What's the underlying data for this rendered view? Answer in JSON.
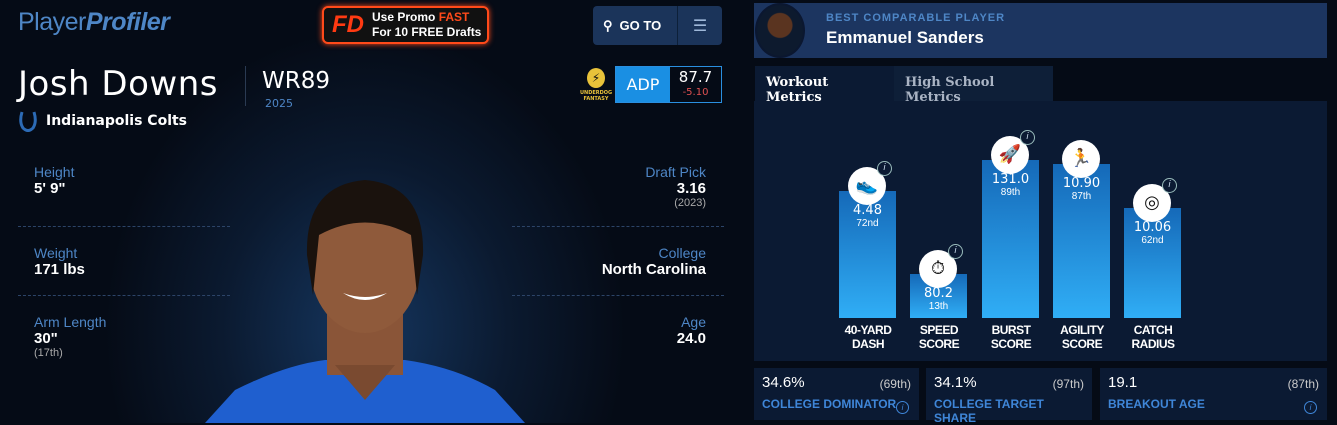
{
  "header": {
    "logo_a": "Player",
    "logo_b": "Profiler",
    "promo_brand": "FD",
    "promo_line1": "Use Promo ",
    "promo_code": "FAST",
    "promo_line2": "For 10 FREE Drafts",
    "goto_label": "GO TO"
  },
  "player": {
    "name": "Josh Downs",
    "position_rank": "WR89",
    "season": "2025",
    "team": "Indianapolis Colts",
    "adp_source": "UNDERDOG FANTASY",
    "adp_label": "ADP",
    "adp_value": "87.7",
    "adp_change": "-5.10",
    "stats_left": [
      {
        "label": "Height",
        "value": "5' 9\"",
        "sub": ""
      },
      {
        "label": "Weight",
        "value": "171 lbs",
        "sub": ""
      },
      {
        "label": "Arm Length",
        "value": "30\"",
        "sub": "(17th)"
      }
    ],
    "stats_right": [
      {
        "label": "Draft Pick",
        "value": "3.16",
        "sub": "(2023)"
      },
      {
        "label": "College",
        "value": "North Carolina",
        "sub": ""
      },
      {
        "label": "Age",
        "value": "24.0",
        "sub": ""
      }
    ]
  },
  "comparable": {
    "title": "BEST COMPARABLE PLAYER",
    "name": "Emmanuel Sanders"
  },
  "tabs": [
    {
      "label": "Workout Metrics",
      "active": true
    },
    {
      "label": "High School Metrics",
      "active": false
    }
  ],
  "metrics": [
    {
      "label1": "40-YARD",
      "label2": "DASH",
      "value": "4.48",
      "pct_label": "72nd",
      "pct": 72,
      "icon": "shoe-icon",
      "glyph": "👟"
    },
    {
      "label1": "SPEED",
      "label2": "SCORE",
      "value": "80.2",
      "pct_label": "13th",
      "pct": 13,
      "icon": "stopwatch-icon",
      "glyph": "⏱"
    },
    {
      "label1": "BURST",
      "label2": "SCORE",
      "value": "131.0",
      "pct_label": "89th",
      "pct": 89,
      "icon": "rocket-icon",
      "glyph": "🚀"
    },
    {
      "label1": "AGILITY",
      "label2": "SCORE",
      "value": "10.90",
      "pct_label": "87th",
      "pct": 87,
      "icon": "runner-icon",
      "glyph": "🏃"
    },
    {
      "label1": "CATCH",
      "label2": "RADIUS",
      "value": "10.06",
      "pct_label": "62nd",
      "pct": 62,
      "icon": "target-icon",
      "glyph": "◎"
    }
  ],
  "cards": [
    {
      "value": "34.6%",
      "pct": "(69th)",
      "label": "COLLEGE DOMINATOR"
    },
    {
      "value": "34.1%",
      "pct": "(97th)",
      "label": "COLLEGE TARGET SHARE"
    },
    {
      "value": "19.1",
      "pct": "(87th)",
      "label": "BREAKOUT AGE"
    }
  ],
  "colors": {
    "accent": "#4e86c6",
    "adp": "#1a8fe3",
    "bar_top": "#1569b8",
    "bar_bottom": "#30aef6",
    "promo": "#ff4a1a"
  }
}
